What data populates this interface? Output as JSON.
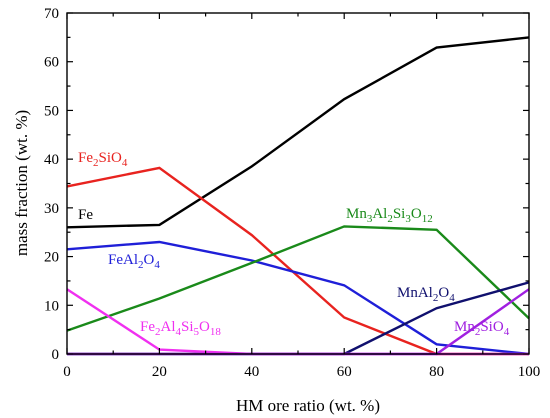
{
  "chart_data": {
    "type": "line",
    "xlabel": "HM ore ratio (wt. %)",
    "ylabel": "mass fraction (wt. %)",
    "xlim": [
      0,
      100
    ],
    "ylim": [
      0,
      70
    ],
    "x_ticks": [
      0,
      20,
      40,
      60,
      80,
      100
    ],
    "y_ticks": [
      0,
      10,
      20,
      30,
      40,
      50,
      60,
      70
    ],
    "grid": false,
    "legend": "none (series labelled inline)",
    "x": [
      0,
      20,
      40,
      60,
      80,
      100
    ],
    "series": [
      {
        "name": "Fe",
        "label_parts": [
          [
            "Fe",
            false
          ]
        ],
        "color": "#000000",
        "values": [
          26.0,
          26.5,
          38.5,
          52.3,
          62.9,
          65.0
        ]
      },
      {
        "name": "Fe2SiO4",
        "label_parts": [
          [
            "Fe",
            false
          ],
          [
            "2",
            true
          ],
          [
            "SiO",
            false
          ],
          [
            "4",
            true
          ]
        ],
        "color": "#e8231f",
        "values": [
          34.4,
          38.2,
          24.4,
          7.5,
          0.0,
          0.0
        ]
      },
      {
        "name": "FeAl2O4",
        "label_parts": [
          [
            "FeAl",
            false
          ],
          [
            "2",
            true
          ],
          [
            "O",
            false
          ],
          [
            "4",
            true
          ]
        ],
        "color": "#1f1fd8",
        "values": [
          21.5,
          23.0,
          19.2,
          14.1,
          2.0,
          0.0
        ]
      },
      {
        "name": "Mn3Al2Si3O12",
        "label_parts": [
          [
            "Mn",
            false
          ],
          [
            "3",
            true
          ],
          [
            "Al",
            false
          ],
          [
            "2",
            true
          ],
          [
            "Si",
            false
          ],
          [
            "3",
            true
          ],
          [
            "O",
            false
          ],
          [
            "12",
            true
          ]
        ],
        "color": "#1a8a1a",
        "values": [
          4.8,
          11.4,
          18.7,
          26.2,
          25.5,
          7.3
        ]
      },
      {
        "name": "MnAl2O4",
        "label_parts": [
          [
            "MnAl",
            false
          ],
          [
            "2",
            true
          ],
          [
            "O",
            false
          ],
          [
            "4",
            true
          ]
        ],
        "color": "#10106e",
        "values": [
          0.0,
          0.0,
          0.0,
          0.0,
          9.4,
          14.7
        ]
      },
      {
        "name": "Fe2Al4Si5O18",
        "label_parts": [
          [
            "Fe",
            false
          ],
          [
            "2",
            true
          ],
          [
            "Al",
            false
          ],
          [
            "4",
            true
          ],
          [
            "Si",
            false
          ],
          [
            "5",
            true
          ],
          [
            "O",
            false
          ],
          [
            "18",
            true
          ]
        ],
        "color": "#f030f0",
        "values": [
          13.3,
          0.9,
          0.0,
          0.0,
          0.0,
          0.0
        ]
      },
      {
        "name": "Mn2SiO4",
        "label_parts": [
          [
            "Mn",
            false
          ],
          [
            "2",
            true
          ],
          [
            "SiO",
            false
          ],
          [
            "4",
            true
          ]
        ],
        "color": "#a020e0",
        "values": [
          0.0,
          0.0,
          0.0,
          0.0,
          0.0,
          13.3
        ]
      }
    ]
  }
}
